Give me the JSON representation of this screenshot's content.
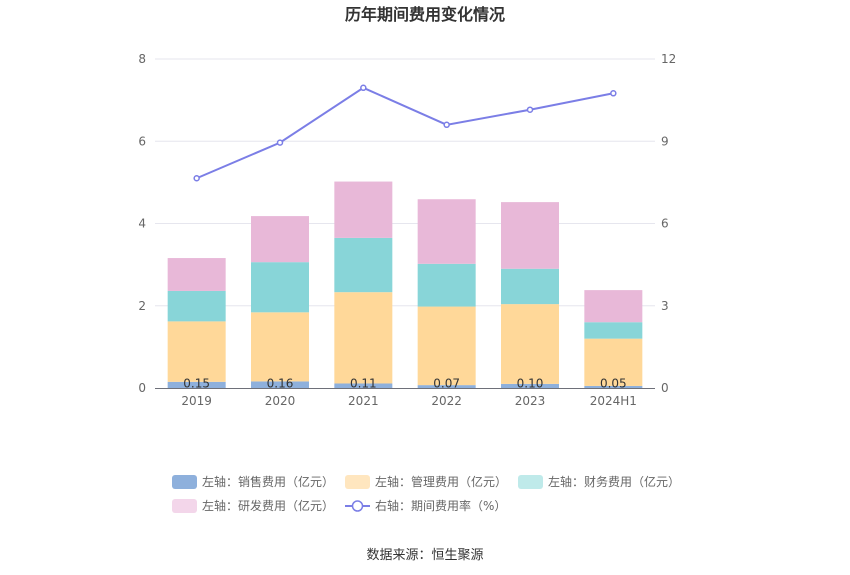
{
  "chart_data": {
    "type": "bar",
    "stacked": true,
    "title": "历年期间费用变化情况",
    "categories": [
      "2019",
      "2020",
      "2021",
      "2022",
      "2023",
      "2024H1"
    ],
    "series": [
      {
        "name": "左轴：销售费用（亿元）",
        "axis": "left",
        "color": "#8eb0dc",
        "values": [
          0.15,
          0.16,
          0.11,
          0.07,
          0.1,
          0.05
        ],
        "labels": [
          "0.15",
          "0.16",
          "0.11",
          "0.07",
          "0.10",
          "0.05"
        ]
      },
      {
        "name": "左轴：管理费用（亿元）",
        "axis": "left",
        "color": "#ffd899",
        "values": [
          1.47,
          1.68,
          2.22,
          1.91,
          1.94,
          1.15
        ]
      },
      {
        "name": "左轴：财务费用（亿元）",
        "axis": "left",
        "color": "#88d5d8",
        "values": [
          0.74,
          1.22,
          1.32,
          1.04,
          0.86,
          0.4
        ]
      },
      {
        "name": "左轴：研发费用（亿元）",
        "axis": "left",
        "color": "#e8b8d8",
        "values": [
          0.8,
          1.12,
          1.37,
          1.57,
          1.62,
          0.78
        ]
      },
      {
        "name": "右轴：期间费用率（%）",
        "axis": "right",
        "type": "line",
        "color": "#7b7ee6",
        "values": [
          7.65,
          8.95,
          10.95,
          9.6,
          10.15,
          10.75
        ]
      }
    ],
    "y_left": {
      "min": 0,
      "max": 8,
      "ticks": [
        "0",
        "2",
        "4",
        "6",
        "8"
      ]
    },
    "y_right": {
      "min": 0,
      "max": 12,
      "ticks": [
        "0",
        "3",
        "6",
        "9",
        "12"
      ]
    },
    "legend_placement": "bottom",
    "grid": true
  },
  "source": "数据来源：恒生聚源"
}
